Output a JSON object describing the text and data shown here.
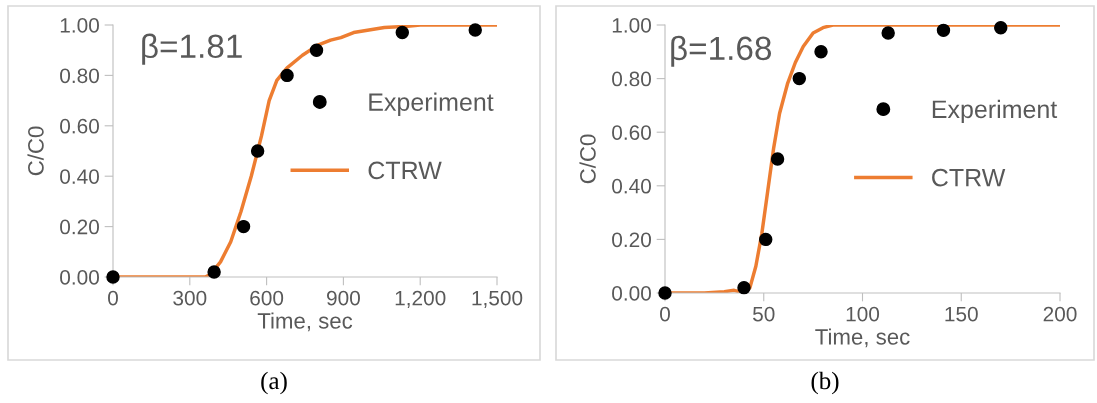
{
  "chart_data": [
    {
      "type": "line",
      "xlabel": "Time, sec",
      "ylabel": "C/C0",
      "annotations": [
        "β=1.81",
        "(a)"
      ],
      "legend": "right",
      "grid": false,
      "xlim": [
        0,
        1500
      ],
      "xticks": [
        0,
        300,
        600,
        900,
        {
          "value": 1200,
          "label": "1,200"
        },
        {
          "value": 1500,
          "label": "1,500"
        }
      ],
      "ylim": [
        0,
        1
      ],
      "yticks": [
        {
          "value": 0,
          "label": "0.00"
        },
        {
          "value": 0.2,
          "label": "0.20"
        },
        {
          "value": 0.4,
          "label": "0.40"
        },
        {
          "value": 0.6,
          "label": "0.60"
        },
        {
          "value": 0.8,
          "label": "0.80"
        },
        {
          "value": 1,
          "label": "1.00"
        }
      ],
      "series": [
        {
          "name": "Experiment",
          "type": "scatter",
          "marker": "circle",
          "color": "#000000",
          "x": [
            0,
            395,
            510,
            565,
            680,
            795,
            1130,
            1415
          ],
          "values": [
            0,
            0.02,
            0.2,
            0.5,
            0.8,
            0.9,
            0.97,
            0.98
          ]
        },
        {
          "name": "CTRW",
          "marker": "none",
          "line_style": "solid",
          "color": "#ed7d31",
          "x": [
            0,
            300,
            360,
            380,
            420,
            460,
            500,
            540,
            580,
            610,
            640,
            680,
            740,
            800,
            850,
            890,
            940,
            1000,
            1060,
            1150,
            1200,
            1300,
            1500
          ],
          "values": [
            0,
            0,
            0,
            0.01,
            0.06,
            0.14,
            0.26,
            0.4,
            0.56,
            0.7,
            0.78,
            0.83,
            0.88,
            0.92,
            0.94,
            0.95,
            0.97,
            0.98,
            0.99,
            0.995,
            1,
            1,
            1
          ]
        }
      ]
    },
    {
      "type": "line",
      "xlabel": "Time, sec",
      "ylabel": "C/C0",
      "annotations": [
        "β=1.68",
        "(b)"
      ],
      "legend": "right",
      "grid": false,
      "xlim": [
        0,
        200
      ],
      "xticks": [
        0,
        50,
        100,
        150,
        200
      ],
      "ylim": [
        0,
        1
      ],
      "yticks": [
        {
          "value": 0,
          "label": "0.00"
        },
        {
          "value": 0.2,
          "label": "0.20"
        },
        {
          "value": 0.4,
          "label": "0.40"
        },
        {
          "value": 0.6,
          "label": "0.60"
        },
        {
          "value": 0.8,
          "label": "0.80"
        },
        {
          "value": 1,
          "label": "1.00"
        }
      ],
      "series": [
        {
          "name": "Experiment",
          "type": "scatter",
          "marker": "circle",
          "color": "#000000",
          "x": [
            0,
            40,
            51,
            57,
            68,
            79,
            113,
            141,
            170
          ],
          "values": [
            0,
            0.02,
            0.2,
            0.5,
            0.8,
            0.9,
            0.97,
            0.98,
            0.99
          ]
        },
        {
          "name": "CTRW",
          "marker": "none",
          "line_style": "solid",
          "color": "#ed7d31",
          "x": [
            0,
            20,
            30,
            35,
            40,
            43,
            46,
            49,
            52,
            55,
            58,
            62,
            66,
            70,
            75,
            80,
            85,
            90,
            100,
            200
          ],
          "values": [
            0,
            0,
            0.005,
            0.01,
            0,
            0.02,
            0.1,
            0.22,
            0.38,
            0.54,
            0.67,
            0.78,
            0.86,
            0.92,
            0.97,
            0.99,
            1,
            1,
            1,
            1
          ]
        }
      ]
    }
  ]
}
